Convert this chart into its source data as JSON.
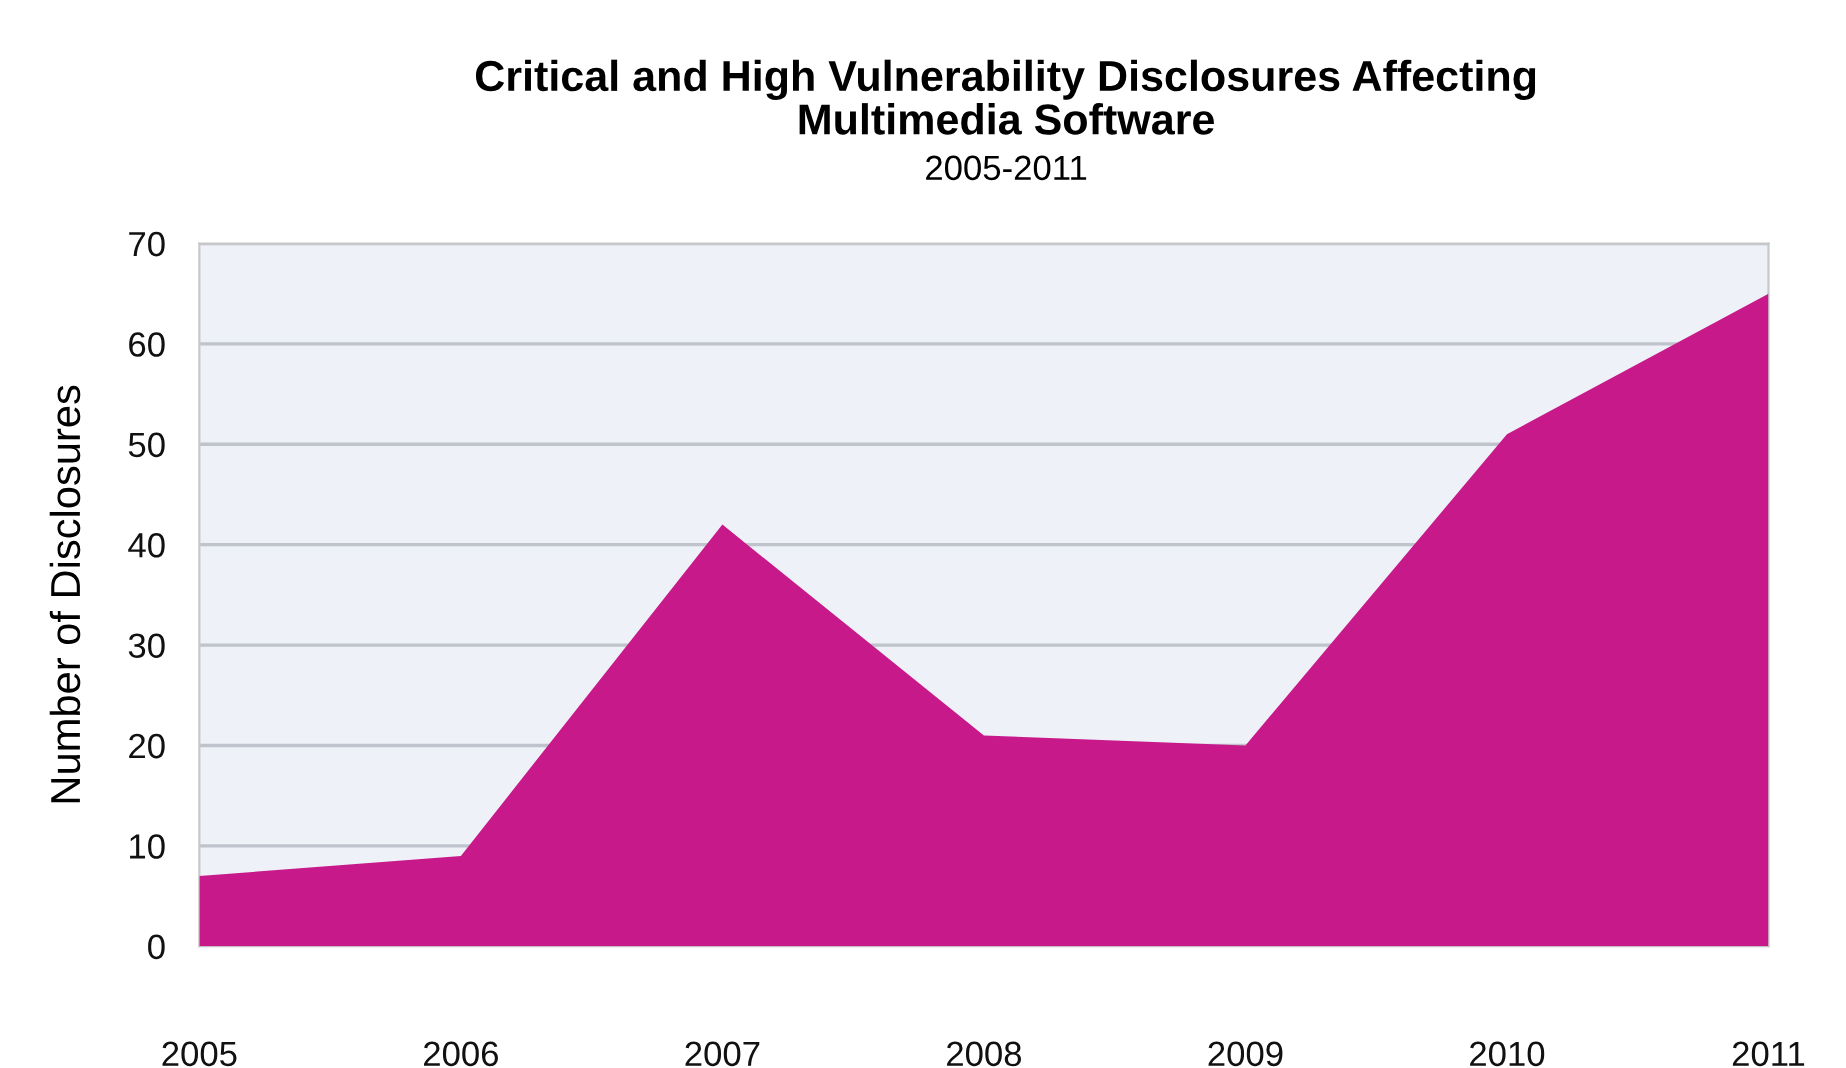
{
  "chart_data": {
    "type": "area",
    "title": "Critical and High Vulnerability Disclosures Affecting\nMultimedia Software",
    "subtitle": "2005-2011",
    "ylabel": "Number of Disclosures",
    "categories": [
      "2005",
      "2006",
      "2007",
      "2008",
      "2009",
      "2010",
      "2011"
    ],
    "values": [
      7,
      9,
      42,
      21,
      20,
      51,
      65
    ],
    "color": "#c8198a",
    "ylim": [
      0,
      70
    ],
    "yticks": [
      0,
      10,
      20,
      30,
      40,
      50,
      60,
      70
    ],
    "grid": "y",
    "legend": false
  }
}
